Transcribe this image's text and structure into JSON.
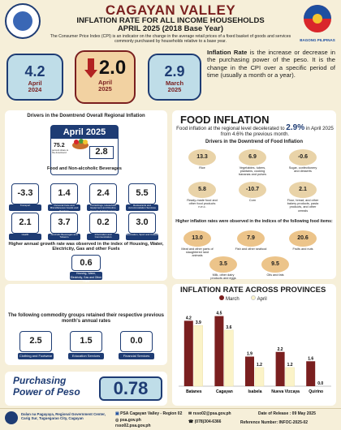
{
  "header": {
    "region": "CAGAYAN VALLEY",
    "subtitle_line1": "INFLATION RATE FOR ALL INCOME HOUSEHOLDS",
    "subtitle_line2": "APRIL 2025 (2018 Base Year)",
    "description": "The Consumer Price Index (CPI) is an indicator on the change in the average retail prices of a fixed basket of goods and services commonly purchased by households relative to a base year.",
    "logo_right_text": "BAGONG PILIPINAS"
  },
  "rates": [
    {
      "value": "4.2",
      "label_line1": "April",
      "label_line2": "2024"
    },
    {
      "value": "2.0",
      "label_line1": "April",
      "label_line2": "2025"
    },
    {
      "value": "2.9",
      "label_line1": "March",
      "label_line2": "2025"
    }
  ],
  "definition": {
    "term": "Inflation Rate",
    "text": " is the increase or decrease in the purchasing power of the peso. It is the change in the CPI over a specific period of time (usually a month or a year)."
  },
  "drivers": {
    "title": "Drivers in the Downtrend Overall Regional Inflation",
    "month": "April 2025",
    "food_share": "75.2",
    "food_share_note": "percent share to the downtrend",
    "food_value": "2.8",
    "food_label": "Food and Non-alcoholic Beverages",
    "categories": [
      {
        "value": "-3.3",
        "label": "Transport"
      },
      {
        "value": "1.4",
        "label": "Personal Care and Miscellaneous Goods and Services"
      },
      {
        "value": "2.4",
        "label": "Furnishings, Household Equipment and Routine Household Maintenance"
      },
      {
        "value": "5.5",
        "label": "Restaurants and Accommodation Services"
      },
      {
        "value": "2.1",
        "label": "Health"
      },
      {
        "value": "3.7",
        "label": "Alcoholic Beverages and Tobacco"
      },
      {
        "value": "0.2",
        "label": "Information and Communication"
      },
      {
        "value": "3.0",
        "label": "Recreation, Sport and Culture"
      }
    ],
    "higher_note": "Higher annual growth rate was observed in the index of Housing, Water, Electricity, Gas and other Fuels",
    "housing_value": "0.6",
    "housing_label": "Housing, Water, Electricity, Gas and Other Fuels",
    "retained_note": "The following commodity groups retained their respective previous month's annual rates",
    "retained": [
      {
        "value": "2.5",
        "label": "Clothing and Footwear"
      },
      {
        "value": "1.5",
        "label": "Education Services"
      },
      {
        "value": "0.0",
        "label": "Financial Services"
      }
    ]
  },
  "food": {
    "title": "FOOD INFLATION",
    "text_before": "Food inflation at the regional level decelerated to ",
    "rate": "2.9%",
    "text_after": " in April 2025 from 4.6% the previous month.",
    "drivers_title": "Drivers in the Downtrend of Food Inflation",
    "downtrend": [
      {
        "value": "13.3",
        "label": "Rice"
      },
      {
        "value": "6.9",
        "label": "Vegetables, tubers, plantains, cooking bananas and pulses"
      },
      {
        "value": "-0.6",
        "label": "Sugar, confectionery and desserts"
      },
      {
        "value": "5.8",
        "label": "Ready-made food and other food products n.e.c."
      },
      {
        "value": "-10.7",
        "label": "Corn"
      },
      {
        "value": "2.1",
        "label": "Flour, bread, and other bakery products, pasta products, and other cereals"
      }
    ],
    "higher_title": "Higher inflation rates were observed in the indices of the following food items:",
    "higher": [
      {
        "value": "13.0",
        "label": "Meat and other parts of slaughtered land animals"
      },
      {
        "value": "7.9",
        "label": "Fish and other seafood"
      },
      {
        "value": "20.6",
        "label": "Fruits and nuts"
      },
      {
        "value": "3.5",
        "label": "Milk, other dairy products and eggs"
      },
      {
        "value": "9.5",
        "label": "Oils and fats"
      }
    ]
  },
  "chart_data": {
    "type": "bar",
    "title": "INFLATION RATE ACROSS PROVINCES",
    "categories": [
      "Batanes",
      "Cagayan",
      "Isabela",
      "Nueva Vizcaya",
      "Quirino"
    ],
    "series": [
      {
        "name": "March",
        "values": [
          4.2,
          4.5,
          1.9,
          2.2,
          1.6
        ],
        "color": "#7a1f1f"
      },
      {
        "name": "April",
        "values": [
          3.9,
          3.6,
          1.2,
          1.2,
          0.0
        ],
        "color": "#fbf3c8"
      }
    ],
    "ylim": [
      0,
      5
    ],
    "legend": "top"
  },
  "purchasing": {
    "label_line1": "Purchasing",
    "label_line2": "Power of Peso",
    "value": "0.78"
  },
  "footer": {
    "address": "Dalan na Pagayaya, Regional Government Center, Carig Sur, Tuguegarao City, Cagayan",
    "facebook": "PSA Cagayan Valley - Region 02",
    "web": "psa.gov.ph",
    "web2": "rsso02.psa.gov.ph",
    "email": "rsso02@psa.gov.ph",
    "phone": "(078)304-6366",
    "release": "Date of Release : 09 May 2025",
    "reference": "Reference Number: INFOC-2025-02"
  }
}
